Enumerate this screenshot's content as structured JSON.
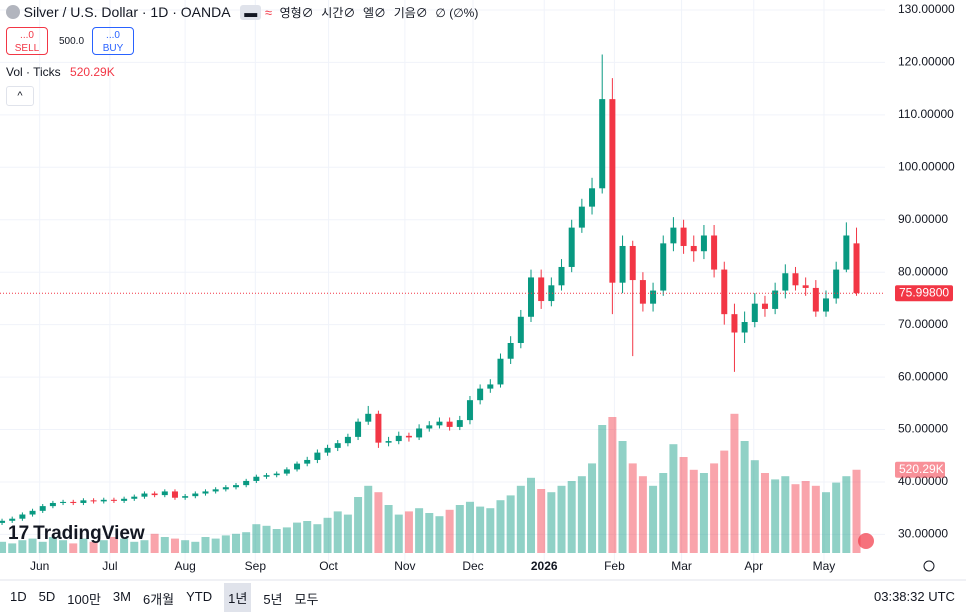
{
  "header": {
    "symbol": "Silver / U.S. Dollar · 1D · OANDA",
    "ohlc": [
      "영형∅",
      "시간∅",
      "엘∅",
      "기음∅",
      "∅ (∅%)"
    ],
    "sell_price": "...0",
    "sell": "SELL",
    "spread": "500.0",
    "buy_price": "...0",
    "buy": "BUY",
    "volume_title": "Vol · Ticks",
    "logo": "TradingView"
  },
  "toolbar": {
    "ranges": [
      "1D",
      "5D",
      "100만",
      "3M",
      "6개월",
      "YTD",
      "1년",
      "5년",
      "모두"
    ],
    "active_range": "1년",
    "clock": "03:38:32 UTC"
  },
  "chart_data": {
    "type": "candlestick",
    "up_color": "#089981",
    "down_color": "#f23645",
    "grid": true,
    "ylim": [
      23.6,
      131.9
    ],
    "yticks": [
      {
        "value": 30,
        "label": "30.00000"
      },
      {
        "value": 40,
        "label": "40.00000"
      },
      {
        "value": 50,
        "label": "50.00000"
      },
      {
        "value": 60,
        "label": "60.00000"
      },
      {
        "value": 70,
        "label": "70.00000"
      },
      {
        "value": 80,
        "label": "80.00000"
      },
      {
        "value": 90,
        "label": "90.00000"
      },
      {
        "value": 100,
        "label": "100.00000"
      },
      {
        "value": 110,
        "label": "110.00000"
      },
      {
        "value": 120,
        "label": "120.00000"
      },
      {
        "value": 130,
        "label": "130.00000"
      }
    ],
    "xlim": [
      -0.2,
      86.8
    ],
    "xticks": [
      {
        "value": 3.7,
        "label": "Jun"
      },
      {
        "value": 10.6,
        "label": "Jul"
      },
      {
        "value": 18,
        "label": "Aug"
      },
      {
        "value": 24.9,
        "label": "Sep"
      },
      {
        "value": 32.1,
        "label": "Oct"
      },
      {
        "value": 39.6,
        "label": "Nov"
      },
      {
        "value": 46.3,
        "label": "Dec"
      },
      {
        "value": 53.3,
        "label": "2026"
      },
      {
        "value": 60.2,
        "label": "Feb"
      },
      {
        "value": 66.8,
        "label": "Mar"
      },
      {
        "value": 73.9,
        "label": "Apr"
      },
      {
        "value": 80.8,
        "label": "May"
      }
    ],
    "open": [
      32.2,
      32.6,
      33,
      33.8,
      34.5,
      35.4,
      36,
      36.2,
      36,
      36.5,
      36.3,
      36.6,
      36.4,
      36.8,
      37.2,
      37.8,
      37.5,
      38.2,
      37,
      37.3,
      37.8,
      38.2,
      38.6,
      39,
      39.4,
      40.2,
      41,
      41.3,
      41.6,
      42.4,
      43.5,
      44.2,
      45.6,
      46.5,
      47.4,
      48.6,
      51.5,
      53,
      47.5,
      47.8,
      48.8,
      48.5,
      50.2,
      50.8,
      51.5,
      50.5,
      51.8,
      55.6,
      57.8,
      58.6,
      63.5,
      66.5,
      71.5,
      79,
      74.5,
      77.5,
      81,
      88.5,
      92.5,
      96,
      113,
      78,
      85,
      78.5,
      74,
      76.5,
      85.5,
      88.5,
      85,
      84,
      87,
      80.5,
      72,
      68.5,
      70.5,
      74,
      73,
      76.5,
      79.8,
      77.5,
      77,
      72.5,
      75,
      80.5,
      85.5
    ],
    "high": [
      33,
      33.4,
      34.2,
      34.9,
      35.8,
      36.4,
      36.6,
      36.6,
      36.9,
      36.9,
      37,
      37,
      37.2,
      37.6,
      38.2,
      38.2,
      38.6,
      38.6,
      37.7,
      38.2,
      38.6,
      39,
      39.4,
      39.8,
      40.6,
      41.4,
      41.7,
      42,
      42.8,
      43.9,
      44.8,
      46.2,
      47.1,
      48,
      49.2,
      52.1,
      54.5,
      53.6,
      48.6,
      49.6,
      49.4,
      51,
      51.6,
      52.3,
      52.3,
      52.6,
      56.4,
      58.6,
      59.6,
      64.5,
      67.8,
      72.8,
      80.5,
      80.5,
      79,
      82.5,
      90,
      94,
      98,
      121.5,
      117,
      87,
      86,
      80,
      78,
      87,
      90.5,
      90,
      87,
      89,
      89,
      82,
      74,
      72.5,
      76,
      75.5,
      78,
      81.5,
      81,
      79,
      78.5,
      76.5,
      82,
      89.5,
      88.5
    ],
    "low": [
      31.8,
      32.2,
      32.6,
      33.4,
      34.1,
      35,
      35.6,
      35.6,
      35.6,
      35.9,
      35.9,
      36,
      36,
      36.4,
      36.8,
      37.1,
      37.1,
      36.6,
      36.6,
      36.9,
      37.4,
      37.8,
      38.2,
      38.6,
      39,
      39.8,
      40.6,
      40.9,
      41.2,
      42,
      43,
      43.6,
      45,
      45.9,
      46.8,
      48,
      50.9,
      46.5,
      46.8,
      47.2,
      47.7,
      48,
      49.6,
      50.2,
      49.8,
      49.9,
      51,
      54.8,
      57,
      58,
      62.5,
      65.5,
      70.5,
      73,
      73.5,
      76.5,
      80,
      87.5,
      91,
      95,
      72,
      76,
      64,
      72.5,
      72.5,
      75.5,
      84,
      83.5,
      82,
      82.5,
      79,
      70,
      61,
      66.5,
      69.5,
      71.5,
      72,
      75,
      76.5,
      75.5,
      71.5,
      71.5,
      74,
      80,
      75.5
    ],
    "close": [
      32.6,
      33,
      33.8,
      34.5,
      35.4,
      36,
      36.2,
      36,
      36.5,
      36.3,
      36.6,
      36.4,
      36.8,
      37.2,
      37.8,
      37.5,
      38.2,
      37,
      37.3,
      37.8,
      38.2,
      38.6,
      39,
      39.4,
      40.2,
      41,
      41.3,
      41.6,
      42.4,
      43.5,
      44.2,
      45.6,
      46.5,
      47.4,
      48.6,
      51.5,
      53,
      47.5,
      47.8,
      48.8,
      48.5,
      50.2,
      50.8,
      51.5,
      50.5,
      51.8,
      55.6,
      57.8,
      58.6,
      63.5,
      66.5,
      71.5,
      79,
      74.5,
      77.5,
      81,
      88.5,
      92.5,
      96,
      113,
      78,
      85,
      78.5,
      74,
      76.5,
      85.5,
      88.5,
      85,
      84,
      87,
      80.5,
      72,
      68.5,
      70.5,
      74,
      73,
      76.5,
      79.8,
      77.5,
      77,
      72.5,
      75,
      80.5,
      87,
      75.998
    ],
    "last_price": {
      "value": 75.998,
      "label": "75.99800"
    },
    "volume": [
      70000,
      60000,
      80000,
      90000,
      70000,
      100000,
      80000,
      60000,
      90000,
      70000,
      80000,
      100000,
      90000,
      70000,
      80000,
      120000,
      100000,
      90000,
      80000,
      70000,
      100000,
      90000,
      110000,
      120000,
      130000,
      180000,
      170000,
      150000,
      160000,
      190000,
      200000,
      180000,
      220000,
      260000,
      240000,
      350000,
      420000,
      380000,
      300000,
      240000,
      260000,
      280000,
      250000,
      230000,
      270000,
      300000,
      320000,
      290000,
      280000,
      330000,
      360000,
      420000,
      470000,
      400000,
      380000,
      420000,
      450000,
      480000,
      560000,
      800000,
      850000,
      700000,
      560000,
      480000,
      420000,
      500000,
      680000,
      600000,
      520000,
      500000,
      560000,
      640000,
      870000,
      700000,
      580000,
      500000,
      460000,
      480000,
      430000,
      450000,
      420000,
      380000,
      440000,
      480000,
      520290
    ],
    "volume_lim": [
      0,
      1000000
    ],
    "volume_label": "520.29K"
  }
}
